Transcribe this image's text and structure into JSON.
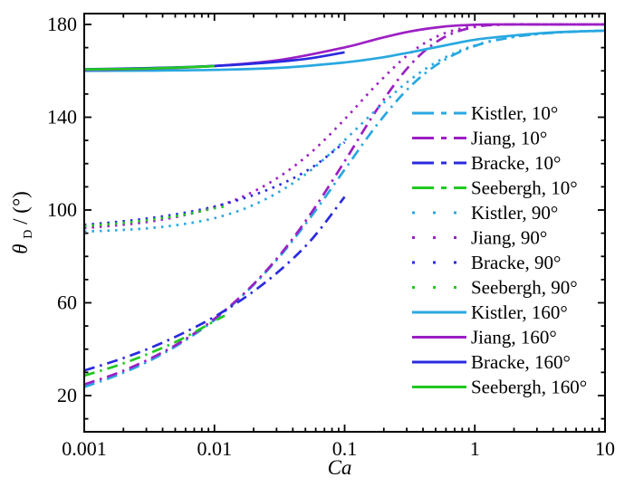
{
  "figure": {
    "background": "#ffffff",
    "frame_color": "#000000"
  },
  "chart_data": {
    "type": "line",
    "title": "",
    "xlabel": "Ca",
    "ylabel": "θD / (°)",
    "ylabel_parts": {
      "theta": "θ",
      "sub": "D",
      "rest": " / (°)"
    },
    "x_scale": "log",
    "x_range": [
      0.001,
      10
    ],
    "y_range": [
      4.4,
      184.7
    ],
    "grid": false,
    "legend_position": "right-inside",
    "x_major_ticks": [
      0.001,
      0.01,
      0.1,
      1,
      10
    ],
    "x_tick_labels": [
      "0.001",
      "0.01",
      "0.1",
      "1",
      "10"
    ],
    "y_major_ticks": [
      20,
      60,
      100,
      140,
      180
    ],
    "y_tick_labels": [
      "20",
      "60",
      "100",
      "140",
      "180"
    ],
    "y_minor_ticks": [
      10,
      30,
      40,
      50,
      70,
      80,
      90,
      110,
      120,
      130,
      150,
      160,
      170
    ],
    "series": [
      {
        "name": "kistler-10",
        "label": "Kistler, 10°",
        "color": "#29A8E0",
        "style": "dashdot",
        "points": [
          [
            0.001,
            23.7
          ],
          [
            0.0018,
            28.8
          ],
          [
            0.0032,
            35.1
          ],
          [
            0.0056,
            42.8
          ],
          [
            0.01,
            52.6
          ],
          [
            0.018,
            65.2
          ],
          [
            0.032,
            80.2
          ],
          [
            0.056,
            97.6
          ],
          [
            0.1,
            117.4
          ],
          [
            0.18,
            137.2
          ],
          [
            0.32,
            153.3
          ],
          [
            0.56,
            164.1
          ],
          [
            1,
            170.7
          ],
          [
            1.8,
            174.2
          ],
          [
            3.2,
            176.0
          ],
          [
            5.6,
            176.8
          ],
          [
            10,
            177.3
          ]
        ]
      },
      {
        "name": "jiang-10",
        "label": "Jiang, 10°",
        "color": "#9C1FC4",
        "style": "dashdot",
        "points": [
          [
            0.001,
            24.8
          ],
          [
            0.0018,
            29.7
          ],
          [
            0.0032,
            35.9
          ],
          [
            0.0056,
            43.3
          ],
          [
            0.01,
            53.1
          ],
          [
            0.018,
            65.5
          ],
          [
            0.032,
            80.8
          ],
          [
            0.056,
            99.1
          ],
          [
            0.1,
            121.0
          ],
          [
            0.18,
            143.9
          ],
          [
            0.32,
            162.6
          ],
          [
            0.56,
            174.0
          ],
          [
            1,
            178.9
          ],
          [
            1.8,
            180
          ],
          [
            3.2,
            180
          ],
          [
            5.6,
            180
          ],
          [
            10,
            180
          ]
        ]
      },
      {
        "name": "bracke-10",
        "label": "Bracke, 10°",
        "color": "#2A2ADF",
        "style": "dashdot",
        "points": [
          [
            0.001,
            30.8
          ],
          [
            0.0018,
            35.3
          ],
          [
            0.0032,
            40.5
          ],
          [
            0.0056,
            46.6
          ],
          [
            0.01,
            54.0
          ],
          [
            0.018,
            63.1
          ],
          [
            0.032,
            74.1
          ],
          [
            0.056,
            87.4
          ],
          [
            0.1,
            105.7
          ]
        ]
      },
      {
        "name": "seebergh-10",
        "label": "Seebergh, 10°",
        "color": "#21C821",
        "style": "dashdot",
        "points": [
          [
            0.001,
            28.6
          ],
          [
            0.0018,
            33.0
          ],
          [
            0.0032,
            38.3
          ],
          [
            0.0056,
            44.4
          ],
          [
            0.01,
            52.1
          ],
          [
            0.012,
            54.5
          ]
        ]
      },
      {
        "name": "kistler-90",
        "label": "Kistler, 90°",
        "color": "#29A8E0",
        "style": "dotted",
        "points": [
          [
            0.001,
            90.7
          ],
          [
            0.0018,
            91.3
          ],
          [
            0.0032,
            92.2
          ],
          [
            0.0056,
            93.8
          ],
          [
            0.01,
            96.5
          ],
          [
            0.018,
            101.1
          ],
          [
            0.032,
            108.1
          ],
          [
            0.056,
            117.5
          ],
          [
            0.1,
            130.1
          ],
          [
            0.18,
            143.9
          ],
          [
            0.32,
            156.2
          ],
          [
            0.56,
            165.1
          ],
          [
            1,
            171.0
          ],
          [
            1.8,
            174.3
          ],
          [
            3.2,
            176.0
          ],
          [
            5.6,
            176.9
          ],
          [
            10,
            177.4
          ]
        ]
      },
      {
        "name": "jiang-90",
        "label": "Jiang, 90°",
        "color": "#9C1FC4",
        "style": "dotted",
        "points": [
          [
            0.001,
            92.2
          ],
          [
            0.0018,
            93.4
          ],
          [
            0.0032,
            95.0
          ],
          [
            0.0056,
            97.5
          ],
          [
            0.01,
            101.2
          ],
          [
            0.018,
            106.7
          ],
          [
            0.032,
            114.6
          ],
          [
            0.056,
            125.1
          ],
          [
            0.1,
            139.1
          ],
          [
            0.18,
            154.6
          ],
          [
            0.32,
            167.7
          ],
          [
            0.56,
            175.8
          ],
          [
            1,
            179.2
          ],
          [
            1.8,
            180
          ],
          [
            3.2,
            180
          ],
          [
            5.6,
            180
          ],
          [
            10,
            180
          ]
        ]
      },
      {
        "name": "bracke-90",
        "label": "Bracke, 90°",
        "color": "#2A2ADF",
        "style": "dotted",
        "points": [
          [
            0.001,
            93.6
          ],
          [
            0.0018,
            94.9
          ],
          [
            0.0032,
            96.5
          ],
          [
            0.0056,
            98.6
          ],
          [
            0.01,
            101.5
          ],
          [
            0.018,
            105.6
          ],
          [
            0.032,
            111.0
          ],
          [
            0.056,
            118.3
          ],
          [
            0.1,
            129.2
          ]
        ]
      },
      {
        "name": "seebergh-90",
        "label": "Seebergh, 90°",
        "color": "#21C821",
        "style": "dotted",
        "points": [
          [
            0.001,
            93.1
          ],
          [
            0.0018,
            94.2
          ],
          [
            0.0032,
            95.8
          ],
          [
            0.0056,
            97.8
          ],
          [
            0.01,
            100.7
          ],
          [
            0.012,
            101.5
          ]
        ]
      },
      {
        "name": "kistler-160",
        "label": "Kistler, 160°",
        "color": "#29A8E0",
        "style": "solid",
        "points": [
          [
            0.001,
            160.0
          ],
          [
            0.0032,
            160.1
          ],
          [
            0.01,
            160.4
          ],
          [
            0.032,
            161.3
          ],
          [
            0.1,
            163.6
          ],
          [
            0.18,
            165.5
          ],
          [
            0.32,
            168.0
          ],
          [
            0.56,
            170.7
          ],
          [
            1,
            173.4
          ],
          [
            1.8,
            175.0
          ],
          [
            3.2,
            176.2
          ],
          [
            5.6,
            176.9
          ],
          [
            10,
            177.3
          ]
        ]
      },
      {
        "name": "jiang-160",
        "label": "Jiang, 160°",
        "color": "#9C1FC4",
        "style": "solid",
        "points": [
          [
            0.001,
            160.4
          ],
          [
            0.0032,
            160.9
          ],
          [
            0.01,
            162.1
          ],
          [
            0.032,
            164.7
          ],
          [
            0.1,
            170.1
          ],
          [
            0.18,
            173.8
          ],
          [
            0.32,
            177.0
          ],
          [
            0.56,
            179.0
          ],
          [
            1,
            179.9
          ],
          [
            1.8,
            180
          ],
          [
            3.2,
            180
          ],
          [
            5.6,
            180
          ],
          [
            10,
            180
          ]
        ]
      },
      {
        "name": "bracke-160",
        "label": "Bracke, 160°",
        "color": "#2A2ADF",
        "style": "solid",
        "points": [
          [
            0.001,
            160.7
          ],
          [
            0.0032,
            161.2
          ],
          [
            0.01,
            162.1
          ],
          [
            0.032,
            164.0
          ],
          [
            0.056,
            165.5
          ],
          [
            0.1,
            168.0
          ]
        ]
      },
      {
        "name": "seebergh-160",
        "label": "Seebergh, 160°",
        "color": "#21C821",
        "style": "solid",
        "points": [
          [
            0.001,
            160.6
          ],
          [
            0.0032,
            161.0
          ],
          [
            0.01,
            162.0
          ]
        ]
      }
    ]
  }
}
